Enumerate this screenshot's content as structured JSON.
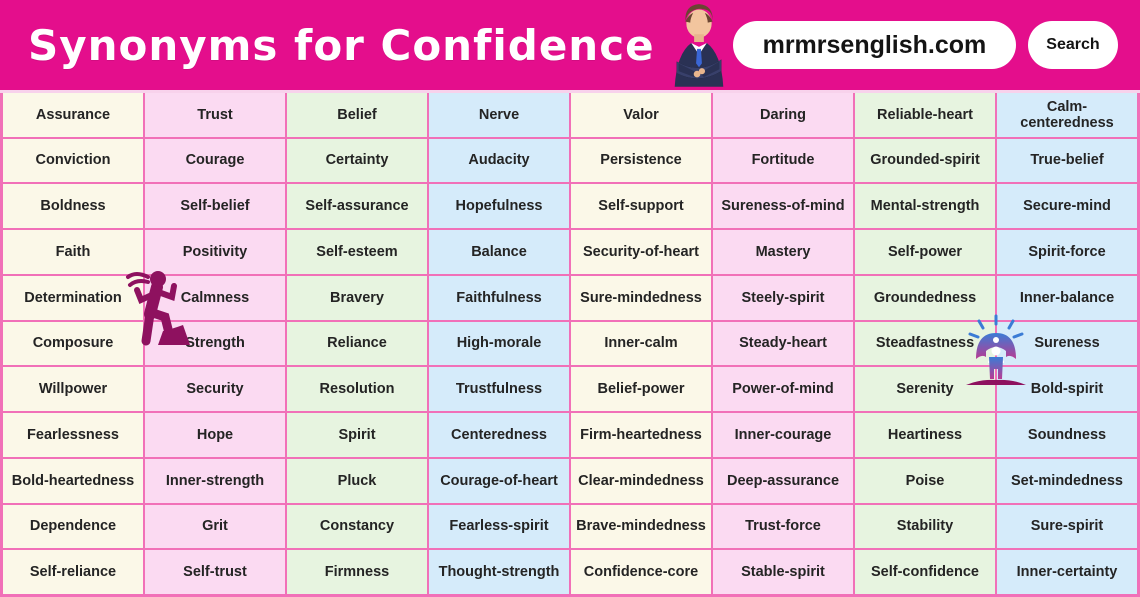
{
  "header": {
    "title": "Synonyms for Confidence",
    "website": "mrmrsenglish.com",
    "search_label": "Search",
    "background_color": "#E40E8C"
  },
  "table": {
    "columns": 8,
    "rows": 11,
    "border_color": "#F170B8",
    "column_colors": [
      "#FBF8E8",
      "#FBDAF2",
      "#E7F4E0",
      "#D5EBFA",
      "#FBF8E8",
      "#FBDAF2",
      "#E7F4E0",
      "#D5EBFA"
    ],
    "cells": [
      [
        "Assurance",
        "Trust",
        "Belief",
        "Nerve",
        "Valor",
        "Daring",
        "Reliable-heart",
        "Calm-centeredness"
      ],
      [
        "Conviction",
        "Courage",
        "Certainty",
        "Audacity",
        "Persistence",
        "Fortitude",
        "Grounded-spirit",
        "True-belief"
      ],
      [
        "Boldness",
        "Self-belief",
        "Self-assurance",
        "Hopefulness",
        "Self-support",
        "Sureness-of-mind",
        "Mental-strength",
        "Secure-mind"
      ],
      [
        "Faith",
        "Positivity",
        "Self-esteem",
        "Balance",
        "Security-of-heart",
        "Mastery",
        "Self-power",
        "Spirit-force"
      ],
      [
        "Determination",
        "Calmness",
        "Bravery",
        "Faithfulness",
        "Sure-mindedness",
        "Steely-spirit",
        "Groundedness",
        "Inner-balance"
      ],
      [
        "Composure",
        "Strength",
        "Reliance",
        "High-morale",
        "Inner-calm",
        "Steady-heart",
        "Steadfastness",
        "Sureness"
      ],
      [
        "Willpower",
        "Security",
        "Resolution",
        "Trustfulness",
        "Belief-power",
        "Power-of-mind",
        "Serenity",
        "Bold-spirit"
      ],
      [
        "Fearlessness",
        "Hope",
        "Spirit",
        "Centeredness",
        "Firm-heartedness",
        "Inner-courage",
        "Heartiness",
        "Soundness"
      ],
      [
        "Bold-heartedness",
        "Inner-strength",
        "Pluck",
        "Courage-of-heart",
        "Clear-mindedness",
        "Deep-assurance",
        "Poise",
        "Set-mindedness"
      ],
      [
        "Dependence",
        "Grit",
        "Constancy",
        "Fearless-spirit",
        "Brave-mindedness",
        "Trust-force",
        "Stability",
        "Sure-spirit"
      ],
      [
        "Self-reliance",
        "Self-trust",
        "Firmness",
        "Thought-strength",
        "Confidence-core",
        "Stable-spirit",
        "Self-confidence",
        "Inner-certainty"
      ]
    ]
  },
  "illustrations": {
    "businessman": "businessman with crossed arms",
    "climber": "person climbing steps",
    "achiever": "shining person figure"
  }
}
